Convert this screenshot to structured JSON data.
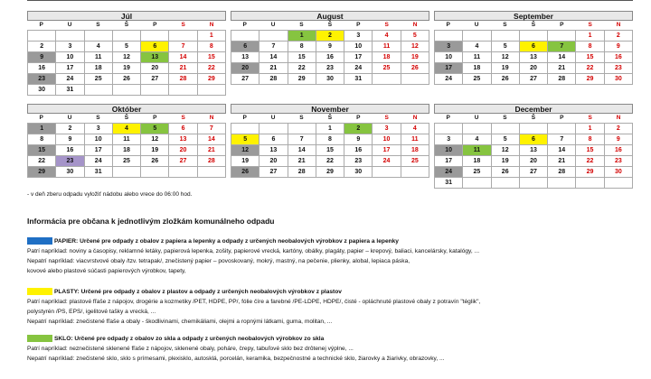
{
  "day_headers": [
    "P",
    "U",
    "S",
    "Š",
    "P",
    "S",
    "N"
  ],
  "months": [
    {
      "name": "Júl",
      "offset": 0,
      "weeks": [
        [
          {
            "d": ""
          },
          {
            "d": ""
          },
          {
            "d": ""
          },
          {
            "d": ""
          },
          {
            "d": ""
          },
          {
            "d": ""
          },
          {
            "d": "1"
          }
        ],
        [
          {
            "d": "2"
          },
          {
            "d": "3"
          },
          {
            "d": "4"
          },
          {
            "d": "5"
          },
          {
            "d": "6",
            "c": "yellow"
          },
          {
            "d": "7"
          },
          {
            "d": "8"
          }
        ],
        [
          {
            "d": "9",
            "c": "gray"
          },
          {
            "d": "10"
          },
          {
            "d": "11"
          },
          {
            "d": "12"
          },
          {
            "d": "13",
            "c": "green"
          },
          {
            "d": "14"
          },
          {
            "d": "15"
          }
        ],
        [
          {
            "d": "16"
          },
          {
            "d": "17"
          },
          {
            "d": "18"
          },
          {
            "d": "19"
          },
          {
            "d": "20"
          },
          {
            "d": "21"
          },
          {
            "d": "22"
          }
        ],
        [
          {
            "d": "23",
            "c": "gray"
          },
          {
            "d": "24"
          },
          {
            "d": "25"
          },
          {
            "d": "26"
          },
          {
            "d": "27"
          },
          {
            "d": "28"
          },
          {
            "d": "29"
          }
        ],
        [
          {
            "d": "30"
          },
          {
            "d": "31"
          },
          {
            "d": ""
          },
          {
            "d": ""
          },
          {
            "d": ""
          },
          {
            "d": ""
          },
          {
            "d": ""
          }
        ]
      ]
    },
    {
      "name": "August",
      "offset": 1,
      "weeks": [
        [
          {
            "d": ""
          },
          {
            "d": ""
          },
          {
            "d": "1",
            "c": "green"
          },
          {
            "d": "2",
            "c": "yellow"
          },
          {
            "d": "3"
          },
          {
            "d": "4"
          },
          {
            "d": "5"
          }
        ],
        [
          {
            "d": "6",
            "c": "gray"
          },
          {
            "d": "7"
          },
          {
            "d": "8"
          },
          {
            "d": "9"
          },
          {
            "d": "10"
          },
          {
            "d": "11"
          },
          {
            "d": "12"
          }
        ],
        [
          {
            "d": "13"
          },
          {
            "d": "14"
          },
          {
            "d": "15"
          },
          {
            "d": "16"
          },
          {
            "d": "17"
          },
          {
            "d": "18"
          },
          {
            "d": "19"
          }
        ],
        [
          {
            "d": "20",
            "c": "gray"
          },
          {
            "d": "21"
          },
          {
            "d": "22"
          },
          {
            "d": "23"
          },
          {
            "d": "24"
          },
          {
            "d": "25"
          },
          {
            "d": "26"
          }
        ],
        [
          {
            "d": "27"
          },
          {
            "d": "28"
          },
          {
            "d": "29"
          },
          {
            "d": "30"
          },
          {
            "d": "31"
          },
          {
            "d": ""
          },
          {
            "d": ""
          }
        ]
      ]
    },
    {
      "name": "September",
      "offset": 2,
      "weeks": [
        [
          {
            "d": ""
          },
          {
            "d": ""
          },
          {
            "d": ""
          },
          {
            "d": ""
          },
          {
            "d": ""
          },
          {
            "d": "1"
          },
          {
            "d": "2"
          }
        ],
        [
          {
            "d": "3",
            "c": "gray"
          },
          {
            "d": "4"
          },
          {
            "d": "5"
          },
          {
            "d": "6",
            "c": "yellow"
          },
          {
            "d": "7",
            "c": "green"
          },
          {
            "d": "8"
          },
          {
            "d": "9"
          }
        ],
        [
          {
            "d": "10"
          },
          {
            "d": "11"
          },
          {
            "d": "12"
          },
          {
            "d": "13"
          },
          {
            "d": "14"
          },
          {
            "d": "15"
          },
          {
            "d": "16"
          }
        ],
        [
          {
            "d": "17",
            "c": "gray"
          },
          {
            "d": "18"
          },
          {
            "d": "19"
          },
          {
            "d": "20"
          },
          {
            "d": "21"
          },
          {
            "d": "22"
          },
          {
            "d": "23"
          }
        ],
        [
          {
            "d": "24"
          },
          {
            "d": "25"
          },
          {
            "d": "26"
          },
          {
            "d": "27"
          },
          {
            "d": "28"
          },
          {
            "d": "29"
          },
          {
            "d": "30"
          }
        ]
      ]
    },
    {
      "name": "Október",
      "offset": 0,
      "weeks": [
        [
          {
            "d": "1",
            "c": "gray"
          },
          {
            "d": "2"
          },
          {
            "d": "3"
          },
          {
            "d": "4",
            "c": "yellow"
          },
          {
            "d": "5",
            "c": "green"
          },
          {
            "d": "6"
          },
          {
            "d": "7"
          }
        ],
        [
          {
            "d": "8"
          },
          {
            "d": "9"
          },
          {
            "d": "10"
          },
          {
            "d": "11"
          },
          {
            "d": "12"
          },
          {
            "d": "13"
          },
          {
            "d": "14"
          }
        ],
        [
          {
            "d": "15",
            "c": "gray"
          },
          {
            "d": "16"
          },
          {
            "d": "17"
          },
          {
            "d": "18"
          },
          {
            "d": "19"
          },
          {
            "d": "20"
          },
          {
            "d": "21"
          }
        ],
        [
          {
            "d": "22"
          },
          {
            "d": "23",
            "c": "purple"
          },
          {
            "d": "24"
          },
          {
            "d": "25"
          },
          {
            "d": "26"
          },
          {
            "d": "27"
          },
          {
            "d": "28"
          }
        ],
        [
          {
            "d": "29",
            "c": "gray"
          },
          {
            "d": "30"
          },
          {
            "d": "31"
          },
          {
            "d": ""
          },
          {
            "d": ""
          },
          {
            "d": ""
          },
          {
            "d": ""
          }
        ]
      ]
    },
    {
      "name": "November",
      "offset": 1,
      "weeks": [
        [
          {
            "d": ""
          },
          {
            "d": ""
          },
          {
            "d": ""
          },
          {
            "d": "1"
          },
          {
            "d": "2",
            "c": "green"
          },
          {
            "d": "3"
          },
          {
            "d": "4"
          }
        ],
        [
          {
            "d": "5",
            "c": "yellow"
          },
          {
            "d": "6"
          },
          {
            "d": "7"
          },
          {
            "d": "8"
          },
          {
            "d": "9"
          },
          {
            "d": "10"
          },
          {
            "d": "11"
          }
        ],
        [
          {
            "d": "12",
            "c": "gray"
          },
          {
            "d": "13"
          },
          {
            "d": "14"
          },
          {
            "d": "15"
          },
          {
            "d": "16"
          },
          {
            "d": "17"
          },
          {
            "d": "18"
          }
        ],
        [
          {
            "d": "19"
          },
          {
            "d": "20"
          },
          {
            "d": "21"
          },
          {
            "d": "22"
          },
          {
            "d": "23"
          },
          {
            "d": "24"
          },
          {
            "d": "25"
          }
        ],
        [
          {
            "d": "26",
            "c": "gray"
          },
          {
            "d": "27"
          },
          {
            "d": "28"
          },
          {
            "d": "29"
          },
          {
            "d": "30"
          },
          {
            "d": ""
          },
          {
            "d": ""
          }
        ]
      ]
    },
    {
      "name": "December",
      "offset": 2,
      "weeks": [
        [
          {
            "d": ""
          },
          {
            "d": ""
          },
          {
            "d": ""
          },
          {
            "d": ""
          },
          {
            "d": ""
          },
          {
            "d": "1"
          },
          {
            "d": "2"
          }
        ],
        [
          {
            "d": "3"
          },
          {
            "d": "4"
          },
          {
            "d": "5"
          },
          {
            "d": "6",
            "c": "yellow"
          },
          {
            "d": "7"
          },
          {
            "d": "8"
          },
          {
            "d": "9"
          }
        ],
        [
          {
            "d": "10",
            "c": "gray"
          },
          {
            "d": "11",
            "c": "green"
          },
          {
            "d": "12"
          },
          {
            "d": "13"
          },
          {
            "d": "14"
          },
          {
            "d": "15"
          },
          {
            "d": "16"
          }
        ],
        [
          {
            "d": "17"
          },
          {
            "d": "18"
          },
          {
            "d": "19"
          },
          {
            "d": "20"
          },
          {
            "d": "21"
          },
          {
            "d": "22"
          },
          {
            "d": "23"
          }
        ],
        [
          {
            "d": "24",
            "c": "gray"
          },
          {
            "d": "25"
          },
          {
            "d": "26"
          },
          {
            "d": "27"
          },
          {
            "d": "28"
          },
          {
            "d": "29"
          },
          {
            "d": "30"
          }
        ],
        [
          {
            "d": "31"
          },
          {
            "d": ""
          },
          {
            "d": ""
          },
          {
            "d": ""
          },
          {
            "d": ""
          },
          {
            "d": ""
          },
          {
            "d": ""
          }
        ]
      ]
    }
  ],
  "note": "- v deň zberu odpadu vyložiť nádobu alebo vrece do 06:00 hod.",
  "section_title": "Informácia pre občana k jednotlivým zložkám komunálneho odpadu",
  "categories": [
    {
      "swatch": "#1f6fc4",
      "name": "PAPIER:",
      "head": "Určené pre odpady z obalov z papiera a lepenky a odpady z určených neobalových výrobkov z papiera a lepenky",
      "lines": [
        "Patrí napríklad: noviny a časopisy, reklamné letáky, papierová lepenka, zošity, papierové vrecká, kartóny, obálky, plagáty, papier – krepový, baliaci, kancelársky, katalógy, ...",
        "Nepatrí napríklad: viacvrstvové obaly /tzv. tetrapak/, znečistený papier – povoskovaný, mokrý, mastný, na pečenie, plienky, alobal, lepiaca páska,",
        "kovové alebo plastové súčasti papierových výrobkov, tapety,"
      ]
    },
    {
      "swatch": "#fff200",
      "name": "PLASTY:",
      "head": "Určené pre odpady z obalov z plastov a odpady z určených neobalových výrobkov z plastov",
      "lines": [
        "Patrí napríklad: plastové fľaše z nápojov, drogérie a kozmetiky /PET, HDPE, PP/, fólie číre a farebné /PE-LDPE, HDPE/, čisté - opláchnuté plastové obaly z potravín \"téglik\",",
        "polystyrén /PS, EPS/, igelitové tašky a vrecká, ...",
        "Nepatrí napríklad: znečistené fľaše a obaly - škodlivinami, chemikáliami, olejmi a ropnými látkami, guma, molitan, ..."
      ]
    },
    {
      "swatch": "#86c440",
      "name": "SKLO:",
      "head": "Určené pre odpady z obalov zo skla a odpady z určených neobalových výrobkov zo skla",
      "lines": [
        "Patrí napríklad: neznečistené sklenené fľaše z nápojov, sklenené obaly, poháre, črepy, tabuľové sklo bez drôtenej výplne, ...",
        "Nepatrí napríklad: znečistené sklo, sklo s prímesami, plexisklo, autosklá, porcelán, keramika, bezpečnostné a technické sklo, žiarovky a žiarivky, obrazovky, ..."
      ]
    }
  ]
}
